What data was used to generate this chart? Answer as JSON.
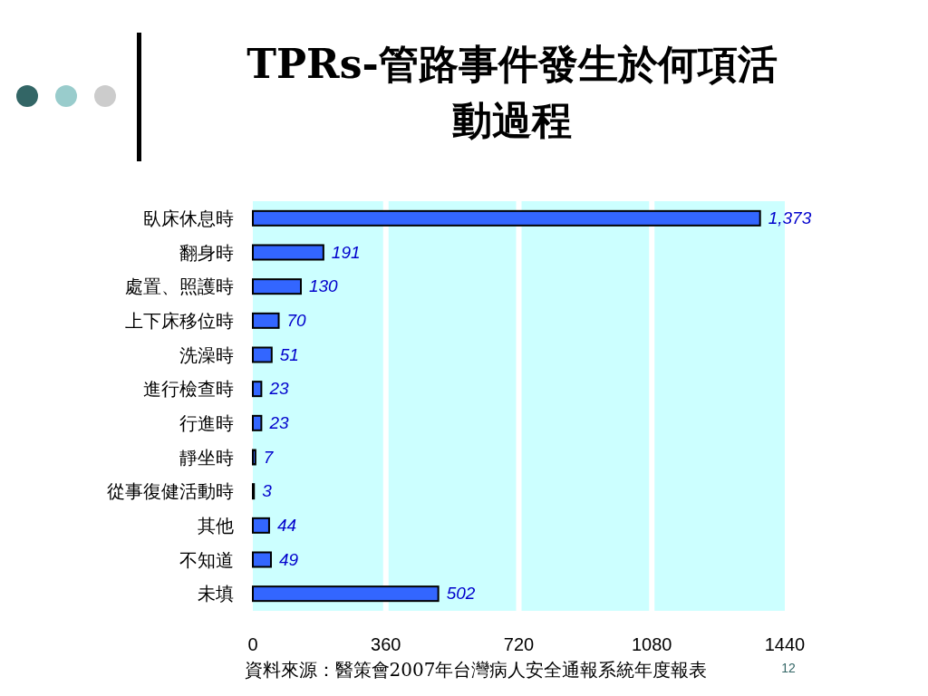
{
  "chart_data": {
    "type": "bar",
    "orientation": "horizontal",
    "title": "TPRs-管路事件發生於何項活動過程",
    "categories": [
      "臥床休息時",
      "翻身時",
      "處置、照護時",
      "上下床移位時",
      "洗澡時",
      "進行檢查時",
      "行進時",
      "靜坐時",
      "從事復健活動時",
      "其他",
      "不知道",
      "未填"
    ],
    "values": [
      1373,
      191,
      130,
      70,
      51,
      23,
      23,
      7,
      3,
      44,
      49,
      502
    ],
    "value_labels": [
      "1,373",
      "191",
      "130",
      "70",
      "51",
      "23",
      "23",
      "7",
      "3",
      "44",
      "49",
      "502"
    ],
    "color": "#3366ff",
    "xlim": [
      0,
      1440
    ],
    "xticks": [
      0,
      360,
      720,
      1080,
      1440
    ],
    "grid": "x",
    "annotations": [
      "資料來源：醫策會2007年台灣病人安全通報系統年度報表",
      "12"
    ]
  }
}
